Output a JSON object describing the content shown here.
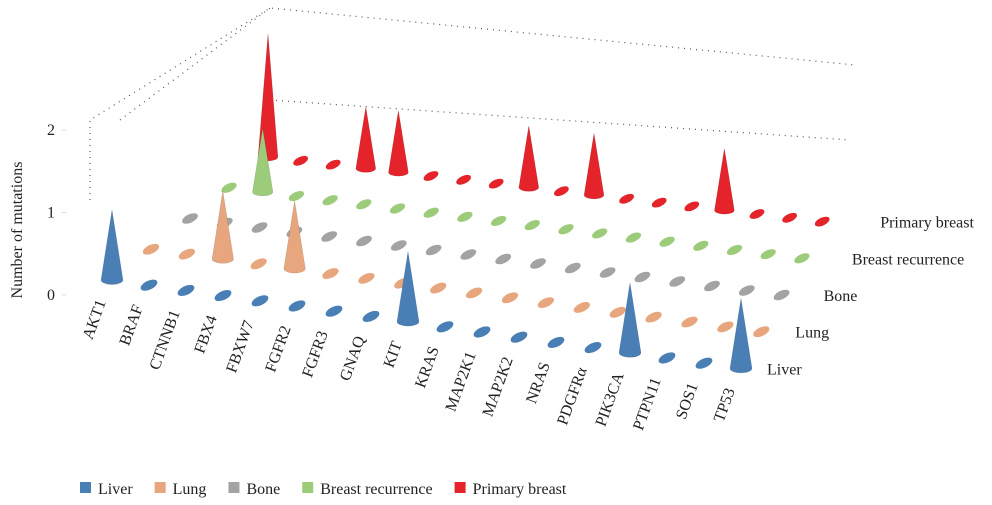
{
  "chart_data": {
    "type": "cone3d",
    "y_label": "Number of mutations",
    "ylim": [
      0,
      2
    ],
    "yticks": [
      0,
      1,
      2
    ],
    "categories": [
      "AKT1",
      "BRAF",
      "CTNNB1",
      "FBX4",
      "FBXW7",
      "FGFR2",
      "FGFR3",
      "GNAQ",
      "KIT",
      "KRAS",
      "MAP2K1",
      "MAP2K2",
      "NRAS",
      "PDGFRα",
      "PIK3CA",
      "PTPN11",
      "SOS1",
      "TP53"
    ],
    "series": [
      {
        "name": "Liver",
        "color": "#4a7fb5",
        "values": [
          1,
          0,
          0,
          0,
          0,
          0,
          0,
          0,
          1,
          0,
          0,
          0,
          0,
          0,
          1,
          0,
          0,
          1
        ]
      },
      {
        "name": "Lung",
        "color": "#e8a67e",
        "values": [
          0,
          0,
          1,
          0,
          1,
          0,
          0,
          0,
          0,
          0,
          0,
          0,
          0,
          0,
          0,
          0,
          0,
          0
        ]
      },
      {
        "name": "Bone",
        "color": "#a3a3a3",
        "values": [
          0,
          0,
          0,
          0,
          0,
          0,
          0,
          0,
          0,
          0,
          0,
          0,
          0,
          0,
          0,
          0,
          0,
          0
        ]
      },
      {
        "name": "Breast recurrence",
        "color": "#9ccc7a",
        "values": [
          0,
          1,
          0,
          0,
          0,
          0,
          0,
          0,
          0,
          0,
          0,
          0,
          0,
          0,
          0,
          0,
          0,
          0
        ]
      },
      {
        "name": "Primary breast",
        "color": "#e4232a",
        "values": [
          2,
          0,
          0,
          1,
          1,
          0,
          0,
          0,
          1,
          0,
          1,
          0,
          0,
          0,
          1,
          0,
          0,
          0
        ]
      }
    ]
  }
}
